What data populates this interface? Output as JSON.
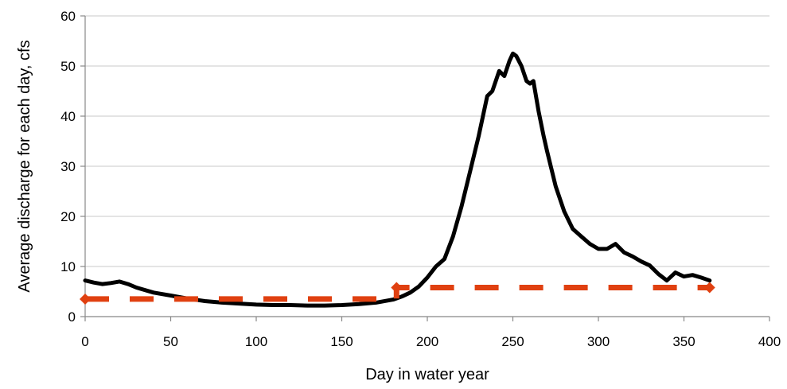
{
  "chart_data": {
    "type": "line",
    "title": "",
    "xlabel": "Day in water year",
    "ylabel": "Average discharge for each day, cfs",
    "xlim": [
      0,
      400
    ],
    "ylim": [
      0,
      60
    ],
    "xticks": [
      0,
      50,
      100,
      150,
      200,
      250,
      300,
      350,
      400
    ],
    "yticks": [
      0,
      10,
      20,
      30,
      40,
      50,
      60
    ],
    "grid": "horizontal",
    "legend": "none",
    "series": [
      {
        "style": "solid",
        "color": "#000000",
        "x": [
          0,
          5,
          10,
          15,
          20,
          25,
          30,
          40,
          50,
          60,
          70,
          80,
          90,
          100,
          110,
          120,
          130,
          140,
          150,
          160,
          170,
          180,
          185,
          190,
          195,
          200,
          205,
          210,
          215,
          220,
          225,
          230,
          235,
          238,
          240,
          242,
          245,
          248,
          250,
          252,
          255,
          258,
          260,
          262,
          265,
          268,
          270,
          275,
          280,
          285,
          290,
          295,
          300,
          305,
          310,
          315,
          320,
          325,
          330,
          335,
          340,
          345,
          350,
          355,
          360,
          365
        ],
        "y": [
          7.2,
          6.8,
          6.5,
          6.7,
          7.0,
          6.5,
          5.8,
          4.8,
          4.2,
          3.6,
          3.1,
          2.8,
          2.6,
          2.4,
          2.3,
          2.3,
          2.2,
          2.2,
          2.3,
          2.5,
          2.8,
          3.4,
          4.0,
          4.8,
          6.0,
          7.8,
          10.0,
          11.5,
          16.0,
          22.0,
          29.0,
          36.0,
          44.0,
          45.0,
          47.0,
          49.0,
          48.0,
          51.0,
          52.5,
          52.0,
          50.0,
          47.0,
          46.5,
          47.0,
          41.0,
          36.0,
          33.0,
          26.0,
          21.0,
          17.5,
          16.0,
          14.5,
          13.5,
          13.5,
          14.5,
          12.8,
          12.0,
          11.0,
          10.2,
          8.5,
          7.2,
          8.8,
          8.0,
          8.3,
          7.8,
          7.2
        ]
      },
      {
        "style": "dashed",
        "color": "#e04010",
        "marker": "diamond",
        "x": [
          0,
          182,
          182,
          365
        ],
        "y": [
          3.5,
          3.5,
          5.8,
          5.8
        ]
      }
    ]
  }
}
